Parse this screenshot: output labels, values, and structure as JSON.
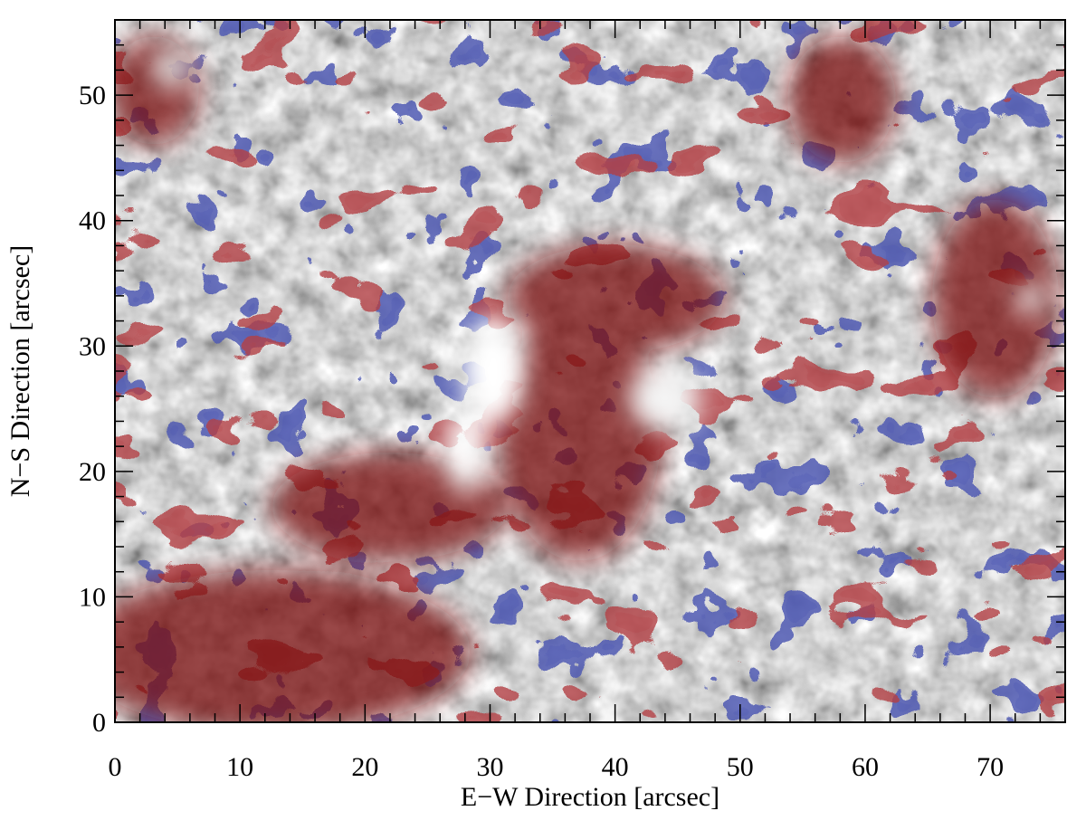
{
  "chart_data": {
    "type": "image",
    "xlabel": "E−W Direction   [arcsec]",
    "ylabel": "N−S Direction   [arcsec]",
    "xlim": [
      0,
      76
    ],
    "ylim": [
      0,
      56
    ],
    "xticks": [
      0,
      10,
      20,
      30,
      40,
      50,
      60,
      70
    ],
    "yticks": [
      0,
      10,
      20,
      30,
      40,
      50
    ],
    "xminorticks": [
      2,
      4,
      6,
      8,
      12,
      14,
      16,
      18,
      22,
      24,
      26,
      28,
      32,
      34,
      36,
      38,
      42,
      44,
      46,
      48,
      52,
      54,
      56,
      58,
      62,
      64,
      66,
      68,
      72,
      74
    ],
    "yminorticks": [
      2,
      4,
      6,
      8,
      12,
      14,
      16,
      18,
      22,
      24,
      26,
      28,
      32,
      34,
      36,
      38,
      42,
      44,
      46,
      48,
      52,
      54
    ]
  }
}
